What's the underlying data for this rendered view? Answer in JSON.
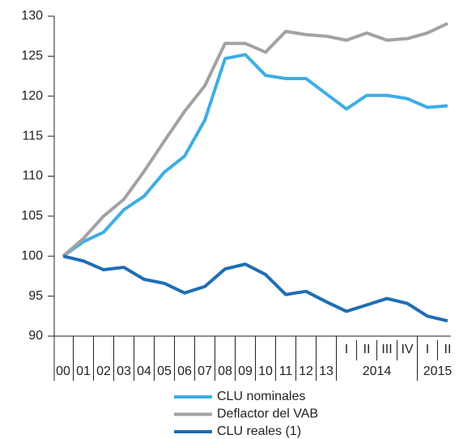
{
  "chart_data": {
    "type": "line",
    "categories": [
      "00",
      "01",
      "02",
      "03",
      "04",
      "05",
      "06",
      "07",
      "08",
      "09",
      "10",
      "11",
      "12",
      "13",
      "I",
      "II",
      "III",
      "IV",
      "I",
      "II"
    ],
    "group_labels": [
      "2014",
      "2015"
    ],
    "series": [
      {
        "name": "CLU nominales",
        "color": "#3daee3",
        "values": [
          100,
          101.8,
          103,
          105.8,
          107.5,
          110.5,
          112.5,
          117,
          124.7,
          125.2,
          122.6,
          122.2,
          122.2,
          120.3,
          118.4,
          120.1,
          120.1,
          119.7,
          118.6,
          118.8
        ]
      },
      {
        "name": "Deflactor del VAB",
        "color": "#a2a2a2",
        "values": [
          100,
          102.2,
          105,
          107.1,
          110.6,
          114.4,
          118.1,
          121.3,
          126.6,
          126.6,
          125.5,
          128.1,
          127.7,
          127.5,
          127,
          127.9,
          127,
          127.2,
          127.9,
          129.1
        ]
      },
      {
        "name": "CLU reales (1)",
        "color": "#1f6db4",
        "values": [
          100,
          99.4,
          98.3,
          98.6,
          97.1,
          96.6,
          95.4,
          96.2,
          98.4,
          99,
          97.7,
          95.2,
          95.6,
          94.3,
          93.1,
          93.9,
          94.7,
          94.1,
          92.5,
          91.9
        ]
      }
    ],
    "ylim": [
      90,
      130
    ],
    "yticks": [
      90,
      95,
      100,
      105,
      110,
      115,
      120,
      125,
      130
    ],
    "grid": false
  }
}
